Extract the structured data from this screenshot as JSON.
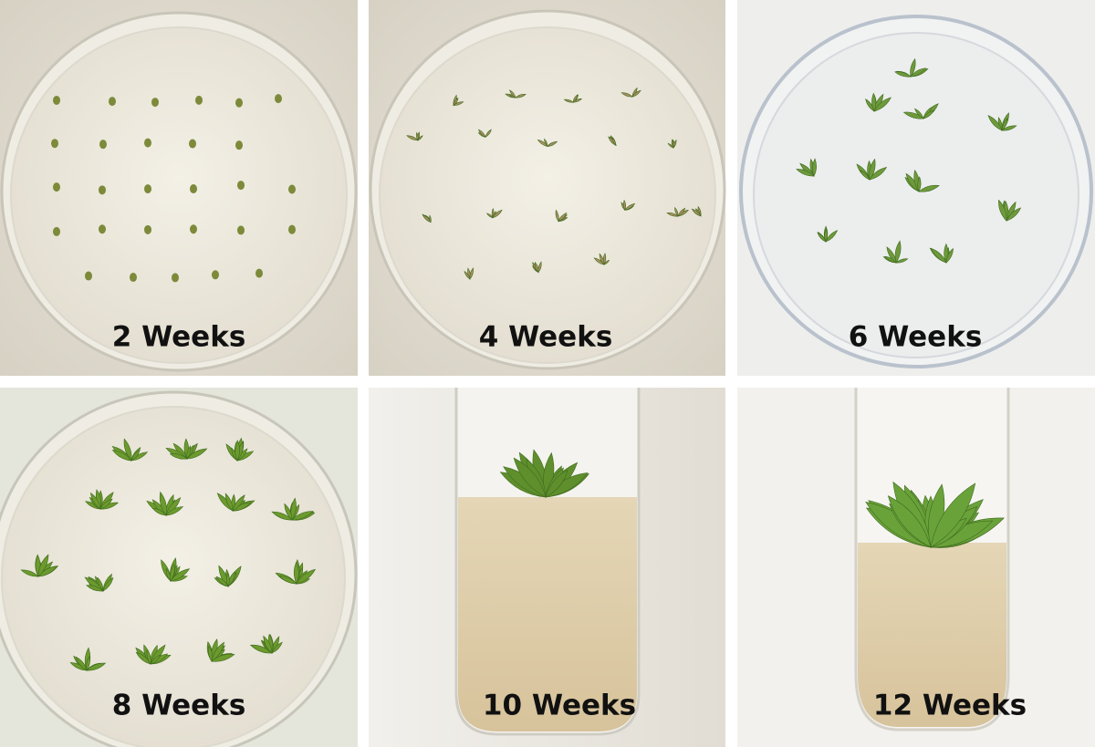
{
  "panels": [
    {
      "label": "2 Weeks"
    },
    {
      "label": "4 Weeks"
    },
    {
      "label": "6 Weeks"
    },
    {
      "label": "8 Weeks"
    },
    {
      "label": "10 Weeks"
    },
    {
      "label": "12 Weeks"
    }
  ]
}
